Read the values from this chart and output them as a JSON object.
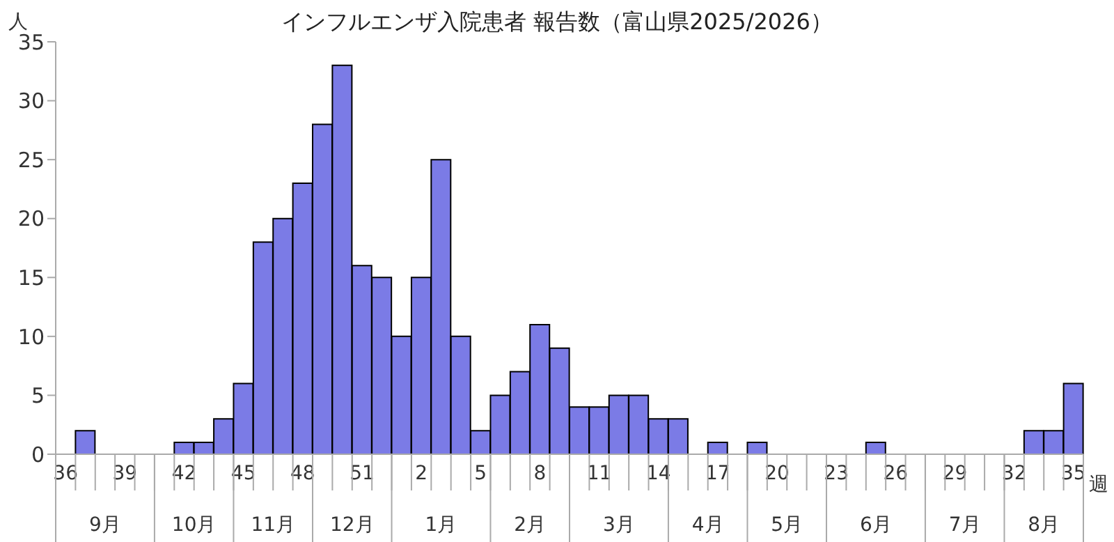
{
  "chart_data": {
    "type": "bar",
    "title": "インフルエンザ入院患者 報告数（富山県2025/2026）",
    "ylabel": "人",
    "xlabel": "週",
    "categories": [
      "36",
      null,
      null,
      "39",
      null,
      null,
      "42",
      null,
      null,
      "45",
      null,
      null,
      "48",
      null,
      null,
      "51",
      null,
      null,
      "2",
      null,
      null,
      "5",
      null,
      null,
      "8",
      null,
      null,
      "11",
      null,
      null,
      "14",
      null,
      null,
      "17",
      null,
      null,
      "20",
      null,
      null,
      "23",
      null,
      null,
      "26",
      null,
      null,
      "29",
      null,
      null,
      "32",
      null,
      null,
      "35"
    ],
    "values": [
      0,
      2,
      0,
      0,
      0,
      0,
      1,
      1,
      3,
      6,
      18,
      20,
      23,
      28,
      33,
      16,
      15,
      10,
      15,
      25,
      10,
      2,
      5,
      7,
      11,
      9,
      4,
      4,
      5,
      5,
      3,
      3,
      0,
      1,
      0,
      1,
      0,
      0,
      0,
      0,
      0,
      1,
      0,
      0,
      0,
      0,
      0,
      0,
      0,
      2,
      2,
      6
    ],
    "color": "#7b7be6",
    "ylim": [
      0,
      35
    ],
    "yticks": [
      0,
      5,
      10,
      15,
      20,
      25,
      30,
      35
    ],
    "grid": false,
    "annotations": [
      "9月",
      "10月",
      "11月",
      "12月",
      "1月",
      "2月",
      "3月",
      "4月",
      "5月",
      "6月",
      "7月",
      "8月"
    ]
  }
}
